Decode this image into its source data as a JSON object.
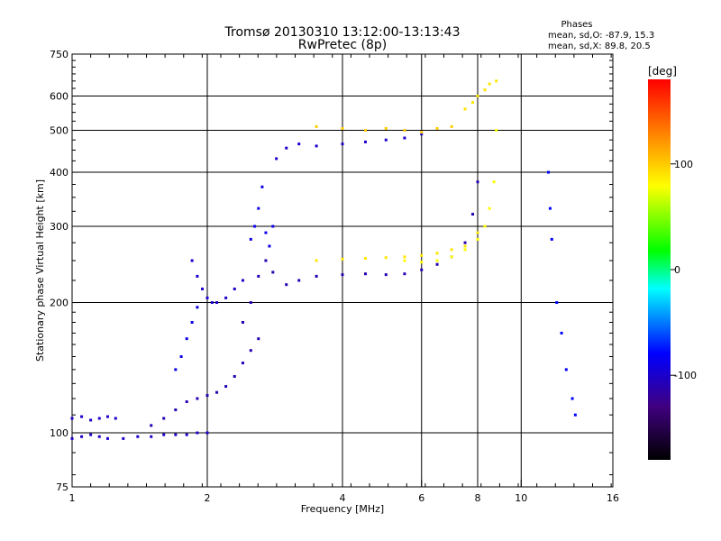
{
  "chart_data": {
    "type": "scatter",
    "title": "Tromsø 20130310 13:12:00-13:13:43",
    "subtitle": "RwPretec (8p)",
    "xlabel": "Frequency [MHz]",
    "ylabel": "Stationary phase Virtual Height [km]",
    "x_scale": "log",
    "y_scale": "log",
    "xlim": [
      1,
      16
    ],
    "ylim": [
      75,
      750
    ],
    "x_ticks": [
      1,
      2,
      4,
      6,
      8,
      10,
      16
    ],
    "x_tick_labels": [
      "1",
      "2",
      "4",
      "6",
      "8",
      "10",
      "16"
    ],
    "y_ticks": [
      75,
      100,
      200,
      300,
      400,
      500,
      600,
      750
    ],
    "y_tick_labels": [
      "75",
      "100",
      "200",
      "300",
      "400",
      "500",
      "600",
      "750"
    ],
    "grid": true,
    "phase_info": {
      "title": "Phases",
      "o_line": "mean, sd,O: -87.9, 15.3",
      "x_line": "mean, sd,X:  89.8, 20.5"
    },
    "colorbar": {
      "label": "[deg]",
      "range": [
        -180,
        180
      ],
      "ticks": [
        100,
        0,
        -100
      ],
      "tick_labels": [
        "100",
        "0",
        "-100"
      ],
      "colors": [
        "#ff0000",
        "#ff8000",
        "#ffff00",
        "#00ff00",
        "#00ffff",
        "#0000ff",
        "#400080",
        "#000000"
      ]
    },
    "series": [
      {
        "x": [
          1.0,
          1.05,
          1.1,
          1.15,
          1.2,
          1.3,
          1.4,
          1.5,
          1.6,
          1.7,
          1.8,
          1.9,
          2.0
        ],
        "y": [
          97,
          98,
          99,
          98,
          97,
          97,
          98,
          98,
          99,
          99,
          99,
          100,
          100
        ],
        "phase": -100
      },
      {
        "x": [
          1.0,
          1.05,
          1.1,
          1.15,
          1.2,
          1.25
        ],
        "y": [
          108,
          109,
          107,
          108,
          109,
          108
        ],
        "phase": -100
      },
      {
        "x": [
          1.5,
          1.6,
          1.7,
          1.8,
          1.9,
          2.0,
          2.1,
          2.2,
          2.3,
          2.4,
          2.5,
          2.6
        ],
        "y": [
          104,
          108,
          113,
          118,
          120,
          122,
          124,
          128,
          135,
          145,
          155,
          165
        ],
        "phase": -110
      },
      {
        "x": [
          1.7,
          1.75,
          1.8,
          1.85,
          1.9
        ],
        "y": [
          140,
          150,
          165,
          180,
          195
        ],
        "phase": -90
      },
      {
        "x": [
          1.85,
          1.9,
          1.95,
          2.0,
          2.05,
          2.1,
          2.2,
          2.3,
          2.4
        ],
        "y": [
          250,
          230,
          215,
          205,
          200,
          200,
          205,
          215,
          225
        ],
        "phase": -100
      },
      {
        "x": [
          2.4,
          2.5,
          2.6,
          2.7,
          2.8,
          3.0,
          3.2,
          3.5,
          4.0,
          4.5,
          5.0,
          5.5,
          6.0,
          6.5,
          7.0,
          7.5,
          7.8,
          8.0
        ],
        "y": [
          180,
          200,
          230,
          250,
          235,
          220,
          225,
          230,
          232,
          233,
          232,
          233,
          238,
          245,
          255,
          275,
          320,
          380
        ],
        "phase": -110
      },
      {
        "x": [
          2.5,
          2.55,
          2.6,
          2.65,
          2.7,
          2.75,
          2.8
        ],
        "y": [
          280,
          300,
          330,
          370,
          290,
          270,
          300
        ],
        "phase": -90
      },
      {
        "x": [
          2.85,
          3.0,
          3.2,
          3.5,
          4.0,
          4.5,
          5.0,
          5.5,
          6.0
        ],
        "y": [
          430,
          455,
          465,
          460,
          465,
          470,
          475,
          480,
          490
        ],
        "phase": -100
      },
      {
        "x": [
          3.5,
          4.0,
          4.5,
          5.0,
          5.5,
          6.0,
          6.5,
          7.0,
          7.5,
          8.0
        ],
        "y": [
          250,
          252,
          253,
          254,
          255,
          257,
          260,
          265,
          270,
          290
        ],
        "phase": 90
      },
      {
        "x": [
          5.5,
          6.0,
          6.5,
          7.0,
          7.5,
          8.0,
          8.3,
          8.5,
          8.7,
          8.8
        ],
        "y": [
          250,
          248,
          250,
          255,
          265,
          280,
          300,
          330,
          380,
          500
        ],
        "phase": 80
      },
      {
        "x": [
          3.5,
          4.0,
          4.5,
          5.0,
          5.5,
          6.0,
          6.5,
          7.0
        ],
        "y": [
          510,
          505,
          500,
          505,
          500,
          495,
          505,
          510
        ],
        "phase": 100
      },
      {
        "x": [
          7.5,
          7.8,
          8.0,
          8.3,
          8.5,
          8.8
        ],
        "y": [
          560,
          580,
          600,
          620,
          640,
          650
        ],
        "phase": 90
      },
      {
        "x": [
          11.5,
          11.6,
          11.7,
          12.0,
          12.3,
          12.6,
          13.0,
          13.2
        ],
        "y": [
          400,
          330,
          280,
          200,
          170,
          140,
          120,
          110
        ],
        "phase": -80
      }
    ]
  }
}
